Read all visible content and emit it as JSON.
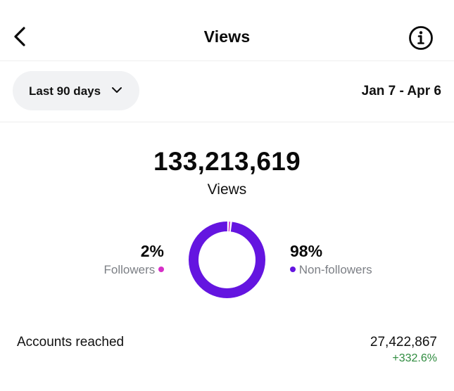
{
  "header": {
    "title": "Views",
    "back_icon": "chevron-left-icon",
    "info_icon": "info-circle-icon"
  },
  "filter": {
    "range_label": "Last 90 days",
    "range_icon": "chevron-down-icon",
    "date_range": "Jan 7 - Apr 6"
  },
  "summary": {
    "total_views": "133,213,619",
    "total_label": "Views"
  },
  "breakdown": {
    "followers": {
      "percent_label": "2%",
      "label": "Followers",
      "color": "#d62fc7",
      "fraction": 0.02
    },
    "non_followers": {
      "percent_label": "98%",
      "label": "Non-followers",
      "color": "#6415e0",
      "fraction": 0.98
    }
  },
  "metrics": [
    {
      "label": "Accounts reached",
      "value": "27,422,867",
      "change": "+332.6%",
      "change_color": "#2e8b3e"
    }
  ]
}
